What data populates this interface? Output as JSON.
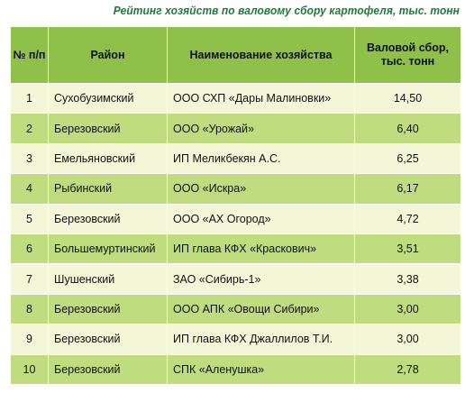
{
  "title": "Рейтинг хозяйств по валовому сбору картофеля, тыс. тонн",
  "table": {
    "headers": {
      "num": "№ п/п",
      "district": "Район",
      "farm": "Наименование хозяйства",
      "value": "Валовой сбор, тыс. тонн"
    },
    "rows": [
      {
        "num": "1",
        "district": "Сухобузимский",
        "farm": "ООО СХП «Дары Малиновки»",
        "value": "14,50"
      },
      {
        "num": "2",
        "district": "Березовский",
        "farm": "ООО «Урожай»",
        "value": "6,40"
      },
      {
        "num": "3",
        "district": "Емельяновский",
        "farm": "ИП Меликбекян А.С.",
        "value": "6,25"
      },
      {
        "num": "4",
        "district": "Рыбинский",
        "farm": "ООО «Искра»",
        "value": "6,17"
      },
      {
        "num": "5",
        "district": "Березовский",
        "farm": "ООО «АХ Огород»",
        "value": "4,72"
      },
      {
        "num": "6",
        "district": "Большемуртинский",
        "farm": "ИП глава КФХ «Краскович»",
        "value": "3,51"
      },
      {
        "num": "7",
        "district": "Шушенский",
        "farm": "ЗАО «Сибирь-1»",
        "value": "3,38"
      },
      {
        "num": "8",
        "district": "Березовский",
        "farm": "ООО АПК «Овощи Сибири»",
        "value": "3,00"
      },
      {
        "num": "9",
        "district": "Березовский",
        "farm": "ИП глава КФХ Джаллилов Т.И.",
        "value": "3,00"
      },
      {
        "num": "10",
        "district": "Березовский",
        "farm": "СПК «Аленушка»",
        "value": "2,78"
      }
    ]
  },
  "colors": {
    "title": "#1e7a3a",
    "header_bg": "#8fc04a",
    "row_light": "#f3f7d8",
    "row_dark": "#bfdc7e"
  }
}
